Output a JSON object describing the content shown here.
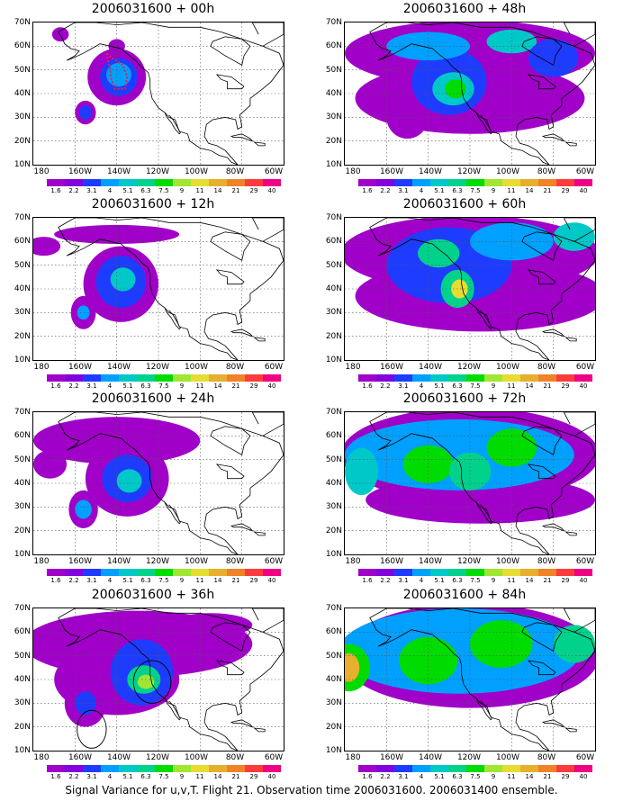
{
  "caption": "Signal Variance for u,v,T. Flight 21. Observation time 2006031600. 2006031400 ensemble.",
  "axes": {
    "y_labels": [
      "70N",
      "60N",
      "50N",
      "40N",
      "30N",
      "20N",
      "10N"
    ],
    "x_labels": [
      "180",
      "160W",
      "140W",
      "120W",
      "100W",
      "80W",
      "60W"
    ]
  },
  "colorbar": {
    "labels": [
      "1.6",
      "2.2",
      "3.1",
      "4",
      "5.1",
      "6.3",
      "7.5",
      "9",
      "11",
      "14",
      "21",
      "29",
      "40"
    ],
    "colors": [
      "#a000c8",
      "#8200dc",
      "#1e3cff",
      "#00a0ff",
      "#00c8c8",
      "#00d28c",
      "#00dc00",
      "#a0e632",
      "#e6dc32",
      "#e6af2d",
      "#f08228",
      "#fa3c3c",
      "#f00082"
    ]
  },
  "panels": [
    {
      "title": "2006031600 + 00h",
      "marker": "dotted-polygon",
      "blobs": [
        {
          "cx": 140,
          "cy": 47,
          "rx": 14,
          "ry": 12,
          "level": 0
        },
        {
          "cx": 139,
          "cy": 47,
          "rx": 9,
          "ry": 8,
          "level": 2
        },
        {
          "cx": 139,
          "cy": 48,
          "rx": 6,
          "ry": 5,
          "level": 3
        },
        {
          "cx": 155,
          "cy": 32,
          "rx": 5,
          "ry": 5,
          "level": 0
        },
        {
          "cx": 155,
          "cy": 32,
          "rx": 3,
          "ry": 3,
          "level": 2
        },
        {
          "cx": 167,
          "cy": 65,
          "rx": 4,
          "ry": 3,
          "level": 0
        },
        {
          "cx": 140,
          "cy": 60,
          "rx": 4,
          "ry": 3,
          "level": 0
        }
      ]
    },
    {
      "title": "2006031600 + 48h",
      "blobs": [
        {
          "cx": 120,
          "cy": 57,
          "rx": 60,
          "ry": 14,
          "level": 0
        },
        {
          "cx": 120,
          "cy": 38,
          "rx": 55,
          "ry": 15,
          "level": 0
        },
        {
          "cx": 150,
          "cy": 30,
          "rx": 10,
          "ry": 9,
          "level": 0
        },
        {
          "cx": 130,
          "cy": 45,
          "rx": 18,
          "ry": 14,
          "level": 2
        },
        {
          "cx": 128,
          "cy": 42,
          "rx": 10,
          "ry": 7,
          "level": 4
        },
        {
          "cx": 127,
          "cy": 42,
          "rx": 5,
          "ry": 4,
          "level": 6
        },
        {
          "cx": 140,
          "cy": 60,
          "rx": 20,
          "ry": 6,
          "level": 3
        },
        {
          "cx": 100,
          "cy": 62,
          "rx": 12,
          "ry": 5,
          "level": 4
        },
        {
          "cx": 80,
          "cy": 55,
          "rx": 12,
          "ry": 8,
          "level": 2
        }
      ]
    },
    {
      "title": "2006031600 + 12h",
      "blobs": [
        {
          "cx": 138,
          "cy": 42,
          "rx": 18,
          "ry": 16,
          "level": 0
        },
        {
          "cx": 138,
          "cy": 43,
          "rx": 12,
          "ry": 11,
          "level": 2
        },
        {
          "cx": 137,
          "cy": 44,
          "rx": 6,
          "ry": 5,
          "level": 4
        },
        {
          "cx": 156,
          "cy": 30,
          "rx": 6,
          "ry": 7,
          "level": 0
        },
        {
          "cx": 156,
          "cy": 30,
          "rx": 3,
          "ry": 3,
          "level": 3
        },
        {
          "cx": 140,
          "cy": 63,
          "rx": 30,
          "ry": 4,
          "level": 0
        },
        {
          "cx": 175,
          "cy": 58,
          "rx": 8,
          "ry": 4,
          "level": 0
        }
      ]
    },
    {
      "title": "2006031600 + 60h",
      "blobs": [
        {
          "cx": 120,
          "cy": 55,
          "rx": 62,
          "ry": 16,
          "level": 0
        },
        {
          "cx": 115,
          "cy": 37,
          "rx": 60,
          "ry": 15,
          "level": 0
        },
        {
          "cx": 130,
          "cy": 50,
          "rx": 30,
          "ry": 16,
          "level": 2
        },
        {
          "cx": 135,
          "cy": 55,
          "rx": 10,
          "ry": 6,
          "level": 5
        },
        {
          "cx": 126,
          "cy": 40,
          "rx": 8,
          "ry": 8,
          "level": 5
        },
        {
          "cx": 125,
          "cy": 40,
          "rx": 4,
          "ry": 4,
          "level": 8
        },
        {
          "cx": 100,
          "cy": 60,
          "rx": 20,
          "ry": 8,
          "level": 3
        },
        {
          "cx": 70,
          "cy": 62,
          "rx": 10,
          "ry": 6,
          "level": 4
        }
      ]
    },
    {
      "title": "2006031600 + 24h",
      "blobs": [
        {
          "cx": 140,
          "cy": 58,
          "rx": 40,
          "ry": 10,
          "level": 0
        },
        {
          "cx": 135,
          "cy": 42,
          "rx": 20,
          "ry": 16,
          "level": 0
        },
        {
          "cx": 135,
          "cy": 42,
          "rx": 12,
          "ry": 10,
          "level": 2
        },
        {
          "cx": 134,
          "cy": 41,
          "rx": 6,
          "ry": 5,
          "level": 4
        },
        {
          "cx": 156,
          "cy": 29,
          "rx": 7,
          "ry": 8,
          "level": 0
        },
        {
          "cx": 156,
          "cy": 29,
          "rx": 4,
          "ry": 4,
          "level": 3
        },
        {
          "cx": 172,
          "cy": 48,
          "rx": 8,
          "ry": 6,
          "level": 0
        }
      ]
    },
    {
      "title": "2006031600 + 72h",
      "blobs": [
        {
          "cx": 120,
          "cy": 52,
          "rx": 62,
          "ry": 20,
          "level": 0
        },
        {
          "cx": 115,
          "cy": 33,
          "rx": 55,
          "ry": 10,
          "level": 0
        },
        {
          "cx": 125,
          "cy": 52,
          "rx": 55,
          "ry": 15,
          "level": 3
        },
        {
          "cx": 140,
          "cy": 48,
          "rx": 12,
          "ry": 8,
          "level": 6
        },
        {
          "cx": 120,
          "cy": 45,
          "rx": 10,
          "ry": 8,
          "level": 5
        },
        {
          "cx": 100,
          "cy": 55,
          "rx": 12,
          "ry": 8,
          "level": 6
        },
        {
          "cx": 172,
          "cy": 45,
          "rx": 8,
          "ry": 10,
          "level": 4
        }
      ]
    },
    {
      "title": "2006031600 + 36h",
      "markers": "circles",
      "blobs": [
        {
          "cx": 130,
          "cy": 55,
          "rx": 55,
          "ry": 14,
          "level": 0
        },
        {
          "cx": 140,
          "cy": 40,
          "rx": 30,
          "ry": 15,
          "level": 0
        },
        {
          "cx": 128,
          "cy": 43,
          "rx": 15,
          "ry": 14,
          "level": 2
        },
        {
          "cx": 127,
          "cy": 40,
          "rx": 8,
          "ry": 6,
          "level": 5
        },
        {
          "cx": 126,
          "cy": 39,
          "rx": 4,
          "ry": 3,
          "level": 7
        },
        {
          "cx": 155,
          "cy": 30,
          "rx": 10,
          "ry": 10,
          "level": 0
        },
        {
          "cx": 155,
          "cy": 30,
          "rx": 5,
          "ry": 5,
          "level": 2
        },
        {
          "cx": 95,
          "cy": 63,
          "rx": 20,
          "ry": 5,
          "level": 0
        }
      ]
    },
    {
      "title": "2006031600 + 84h",
      "blobs": [
        {
          "cx": 120,
          "cy": 50,
          "rx": 62,
          "ry": 22,
          "level": 0
        },
        {
          "cx": 125,
          "cy": 52,
          "rx": 58,
          "ry": 18,
          "level": 3
        },
        {
          "cx": 178,
          "cy": 45,
          "rx": 10,
          "ry": 10,
          "level": 6
        },
        {
          "cx": 178,
          "cy": 45,
          "rx": 5,
          "ry": 6,
          "level": 9
        },
        {
          "cx": 140,
          "cy": 48,
          "rx": 14,
          "ry": 10,
          "level": 6
        },
        {
          "cx": 105,
          "cy": 55,
          "rx": 15,
          "ry": 10,
          "level": 6
        },
        {
          "cx": 70,
          "cy": 55,
          "rx": 10,
          "ry": 8,
          "level": 5
        }
      ]
    }
  ]
}
